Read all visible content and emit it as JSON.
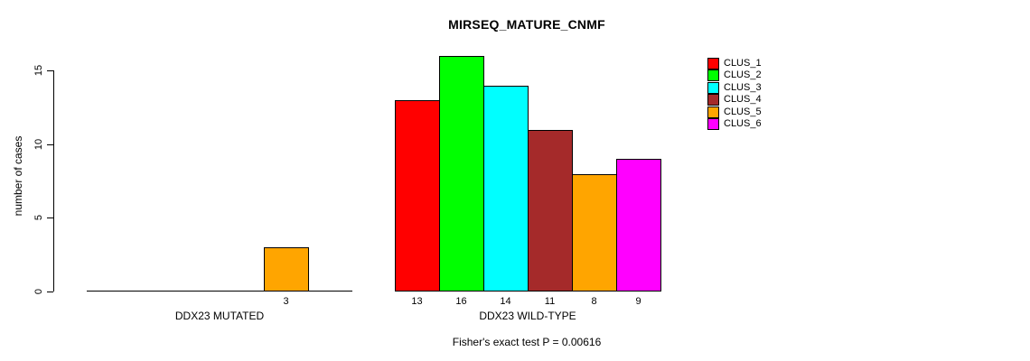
{
  "title": "MIRSEQ_MATURE_CNMF",
  "footer": "Fisher's exact test P = 0.00616",
  "y_axis": {
    "label": "number of cases",
    "tick_labels": [
      "0",
      "5",
      "10",
      "15"
    ]
  },
  "colors": {
    "bar_border": "#000000",
    "axis": "#000000",
    "text": "#000000",
    "background": "#ffffff"
  },
  "chart_data": {
    "type": "bar",
    "title": "MIRSEQ_MATURE_CNMF",
    "xlabel": "",
    "ylabel": "number of cases",
    "ylim": [
      0,
      16
    ],
    "yticks": [
      0,
      5,
      10,
      15
    ],
    "grid": false,
    "legend_position": "right",
    "annotation": "Fisher's exact test P = 0.00616",
    "categories": [
      "DDX23 MUTATED",
      "DDX23 WILD-TYPE"
    ],
    "series": [
      {
        "name": "CLUS_1",
        "color": "#FF0000",
        "values": [
          0,
          13
        ]
      },
      {
        "name": "CLUS_2",
        "color": "#00FF00",
        "values": [
          0,
          16
        ]
      },
      {
        "name": "CLUS_3",
        "color": "#00FFFF",
        "values": [
          0,
          14
        ]
      },
      {
        "name": "CLUS_4",
        "color": "#A52A2A",
        "values": [
          0,
          11
        ]
      },
      {
        "name": "CLUS_5",
        "color": "#FFA500",
        "values": [
          3,
          8
        ]
      },
      {
        "name": "CLUS_6",
        "color": "#FF00FF",
        "values": [
          0,
          9
        ]
      }
    ],
    "bar_value_labels": {
      "DDX23 MUTATED": [
        null,
        null,
        null,
        null,
        3,
        null
      ],
      "DDX23 WILD-TYPE": [
        13,
        16,
        14,
        11,
        8,
        9
      ]
    }
  }
}
